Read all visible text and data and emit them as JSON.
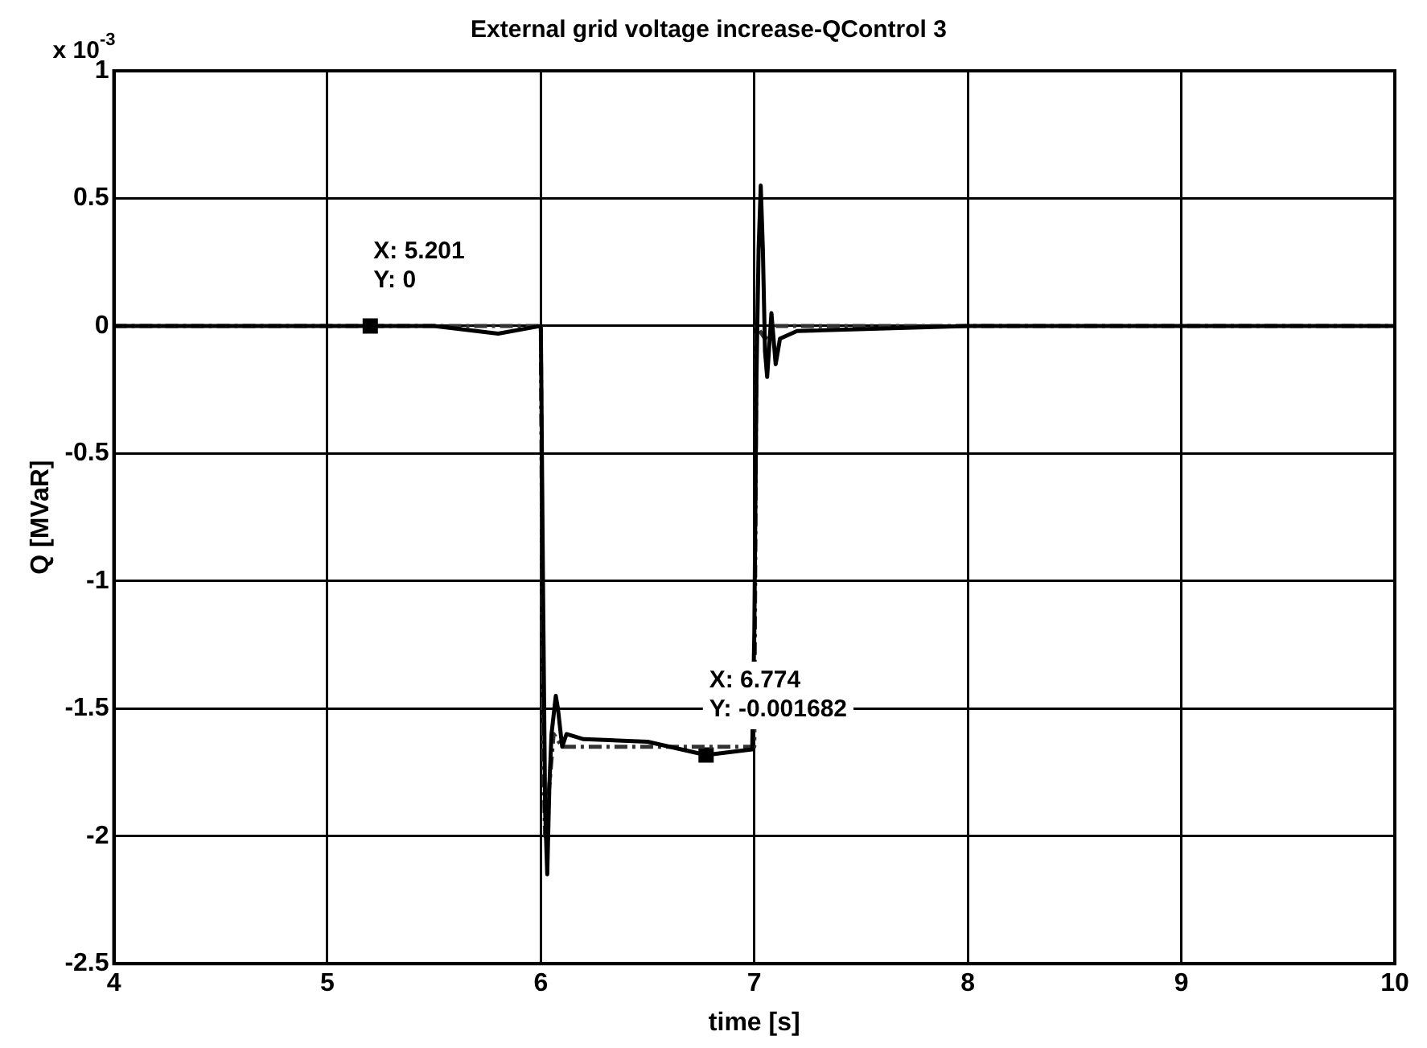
{
  "chart_data": {
    "type": "line",
    "title": "External grid voltage increase-QControl 3",
    "xlabel": "time [s]",
    "ylabel": "Q [MVaR]",
    "annotations": [
      "x 10$^{-3}$",
      {
        "text": "X: 5.201\nY: 0",
        "x": 5.201,
        "y": 0
      },
      {
        "text": "X: 6.774\nY: -0.001682",
        "x": 6.774,
        "y": -1.682
      }
    ],
    "series": [
      {
        "color": "#000000",
        "line_style": "solid",
        "x": [
          4,
          5,
          5.5,
          5.8,
          6.0,
          6.01,
          6.02,
          6.03,
          6.04,
          6.05,
          6.07,
          6.08,
          6.1,
          6.12,
          6.2,
          6.5,
          6.774,
          6.99,
          7.0,
          7.01,
          7.02,
          7.03,
          7.04,
          7.05,
          7.06,
          7.08,
          7.1,
          7.12,
          7.2,
          8,
          9,
          10
        ],
        "values": [
          0,
          0,
          0,
          -0.03,
          0,
          -1.0,
          -1.9,
          -2.15,
          -1.8,
          -1.6,
          -1.45,
          -1.5,
          -1.65,
          -1.6,
          -1.62,
          -1.63,
          -1.682,
          -1.66,
          -1.2,
          -0.2,
          0.3,
          0.55,
          0.3,
          -0.1,
          -0.2,
          0.05,
          -0.15,
          -0.05,
          -0.02,
          0,
          0,
          0
        ]
      },
      {
        "color": "#333333",
        "line_style": "dashed",
        "x": [
          4,
          5,
          6.0,
          6.01,
          6.02,
          6.04,
          6.06,
          6.1,
          6.5,
          7.0,
          7.01,
          7.05,
          7.1,
          8,
          9,
          10
        ],
        "values": [
          0,
          0,
          0,
          -1.65,
          -2.0,
          -1.8,
          -1.6,
          -1.65,
          -1.65,
          -1.65,
          0,
          -0.05,
          0,
          0,
          0,
          0
        ]
      },
      {
        "type": "scatter",
        "color": "#000000",
        "marker": "square",
        "x": [
          5.201,
          6.774
        ],
        "values": [
          0,
          -1.682
        ]
      }
    ],
    "xlim": [
      4,
      10
    ],
    "xticks": [
      4,
      5,
      6,
      7,
      8,
      9,
      10
    ],
    "ylim": [
      -2.5,
      1
    ],
    "yticks": [
      -2.5,
      -2,
      -1.5,
      -1,
      -0.5,
      0,
      0.5,
      1
    ],
    "grid": true,
    "legend": false
  }
}
